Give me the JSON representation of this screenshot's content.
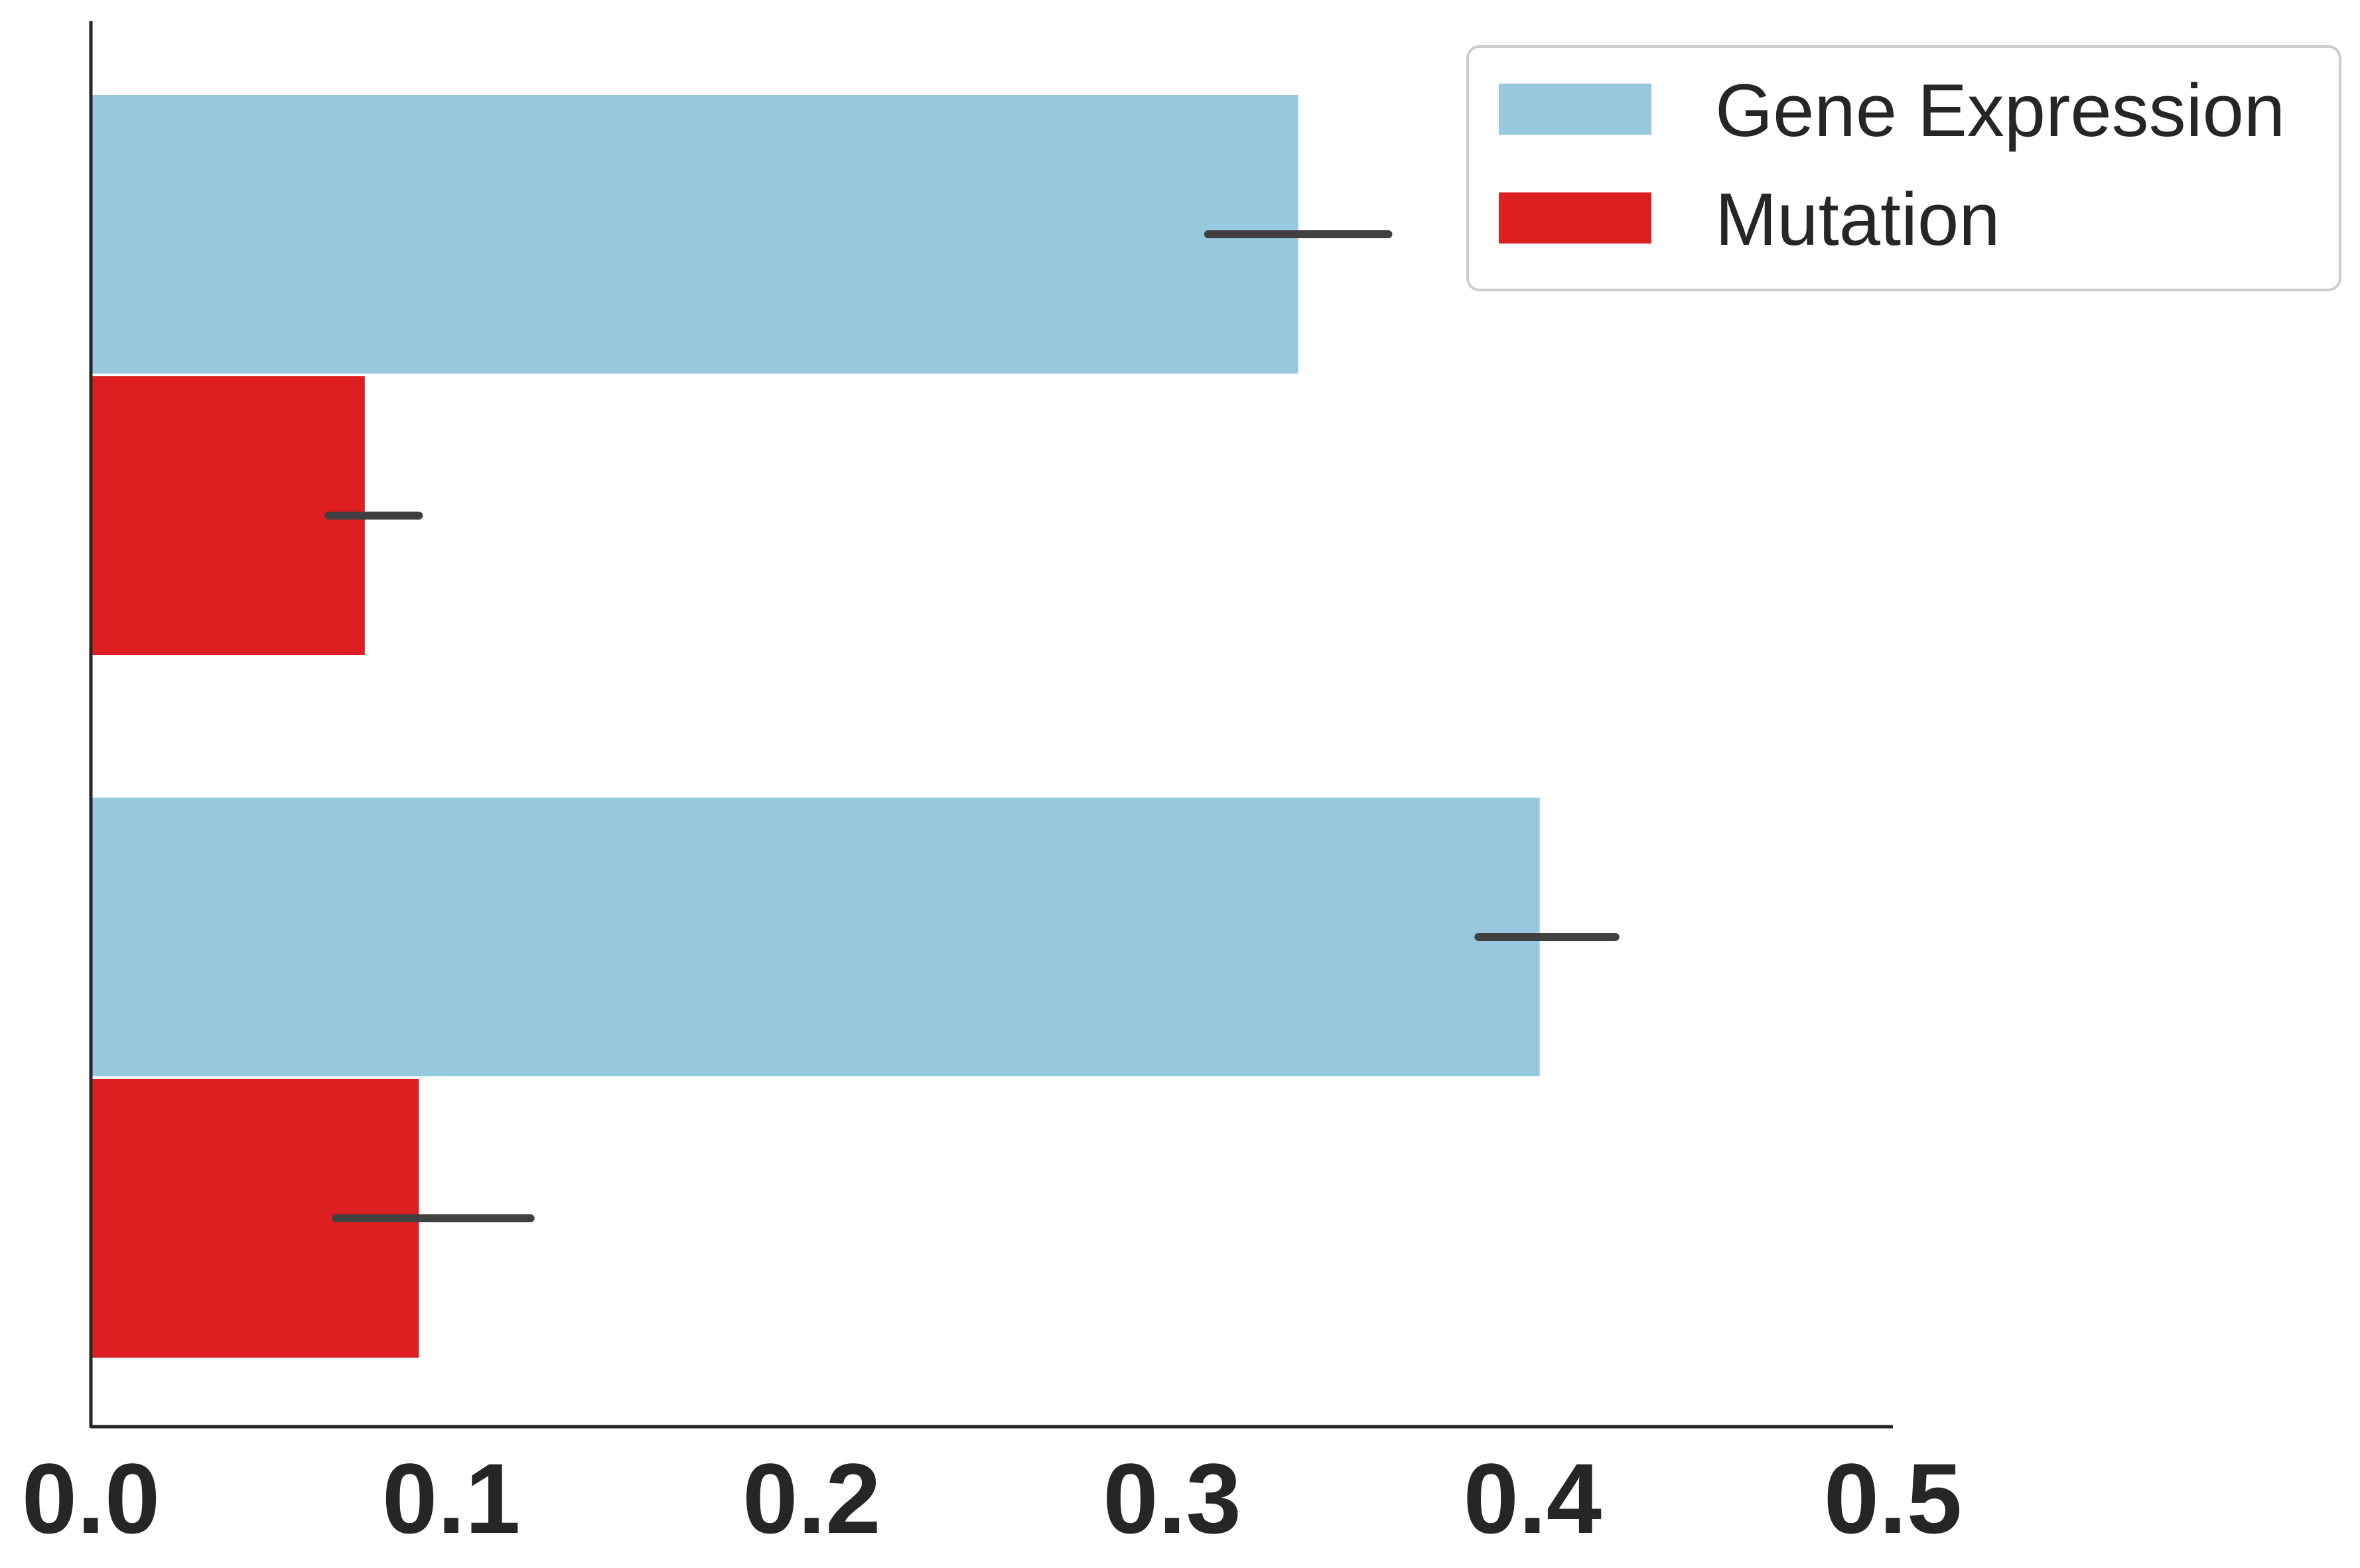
{
  "chart_data": {
    "type": "bar",
    "orientation": "horizontal",
    "categories": [
      "",
      ""
    ],
    "series": [
      {
        "name": "Gene Expression",
        "color": "#97c9de",
        "values": [
          0.335,
          0.402
        ],
        "err_low": [
          0.31,
          0.385
        ],
        "err_high": [
          0.36,
          0.423
        ]
      },
      {
        "name": "Mutation",
        "color": "#de1f21",
        "values": [
          0.076,
          0.091
        ],
        "err_low": [
          0.066,
          0.068
        ],
        "err_high": [
          0.091,
          0.122
        ]
      }
    ],
    "xlim": [
      0,
      0.5
    ],
    "xticks": [
      "0.0",
      "0.1",
      "0.2",
      "0.3",
      "0.4",
      "0.5"
    ],
    "title": "",
    "xlabel": "",
    "ylabel": "",
    "grid": false,
    "legend_position": "top-right"
  }
}
